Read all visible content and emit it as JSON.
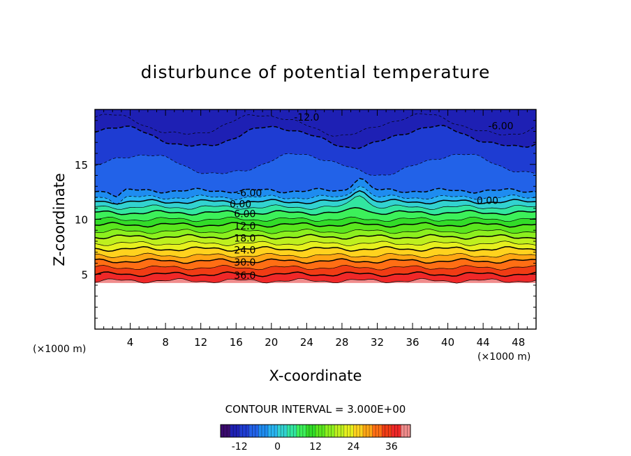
{
  "chart_data": {
    "type": "heatmap",
    "title": "disturbunce of potential temperature",
    "xlabel": "X-coordinate",
    "ylabel": "Z-coordinate",
    "x_unit": "(×1000 m)",
    "y_unit": "(×1000 m)",
    "xlim": [
      0,
      50
    ],
    "ylim": [
      0,
      20
    ],
    "x_ticks": [
      4,
      8,
      12,
      16,
      20,
      24,
      28,
      32,
      36,
      40,
      44,
      48
    ],
    "y_ticks": [
      5,
      10,
      15
    ],
    "contour_interval_text": "CONTOUR INTERVAL = 3.000E+00",
    "colorbar": {
      "range": [
        -18,
        42
      ],
      "ticks": [
        -12,
        0,
        12,
        24,
        36
      ]
    },
    "contour_labels": [
      {
        "text": "-12.0",
        "x": 24,
        "z": 19.3
      },
      {
        "text": "-6.00",
        "x": 46,
        "z": 18.5
      },
      {
        "text": "-6.00",
        "x": 17.5,
        "z": 12.4
      },
      {
        "text": "0.00",
        "x": 16.5,
        "z": 11.4
      },
      {
        "text": "0.00",
        "x": 44.5,
        "z": 11.7
      },
      {
        "text": "6.00",
        "x": 17,
        "z": 10.5
      },
      {
        "text": "12.0",
        "x": 17,
        "z": 9.4
      },
      {
        "text": "18.0",
        "x": 17,
        "z": 8.3
      },
      {
        "text": "24.0",
        "x": 17,
        "z": 7.2
      },
      {
        "text": "30.0",
        "x": 17,
        "z": 6.1
      },
      {
        "text": "36.0",
        "x": 17,
        "z": 4.9
      }
    ],
    "levels": [
      {
        "value": -15,
        "z": 18.6
      },
      {
        "value": -12,
        "z": 17.5
      },
      {
        "value": -9,
        "z": 15.0
      },
      {
        "value": -6,
        "z": 12.6
      },
      {
        "value": -3,
        "z": 12.0
      },
      {
        "value": 0,
        "z": 11.6
      },
      {
        "value": 3,
        "z": 11.1
      },
      {
        "value": 6,
        "z": 10.6
      },
      {
        "value": 9,
        "z": 10.0
      },
      {
        "value": 12,
        "z": 9.5
      },
      {
        "value": 15,
        "z": 8.9
      },
      {
        "value": 18,
        "z": 8.4
      },
      {
        "value": 21,
        "z": 7.8
      },
      {
        "value": 24,
        "z": 7.3
      },
      {
        "value": 27,
        "z": 6.7
      },
      {
        "value": 30,
        "z": 6.2
      },
      {
        "value": 33,
        "z": 5.6
      },
      {
        "value": 36,
        "z": 5.0
      },
      {
        "value": 39,
        "z": 4.4
      }
    ],
    "top_value": -15,
    "zero_data_below_z": 4.2,
    "colors": {
      "-18": "#3a0a6e",
      "-15": "#1e20b4",
      "-12": "#1e3cd2",
      "-9": "#2262e8",
      "-6": "#1e8cf0",
      "-3": "#28b4f0",
      "0": "#32d2d0",
      "3": "#32e6a0",
      "6": "#3cf05a",
      "9": "#32dc28",
      "12": "#5ae61e",
      "15": "#8cf01e",
      "18": "#bef01e",
      "21": "#e6f01e",
      "24": "#ffd21e",
      "27": "#ffa514",
      "30": "#ff6e14",
      "33": "#f03c14",
      "36": "#f02828",
      "39": "#f08c8c"
    }
  }
}
